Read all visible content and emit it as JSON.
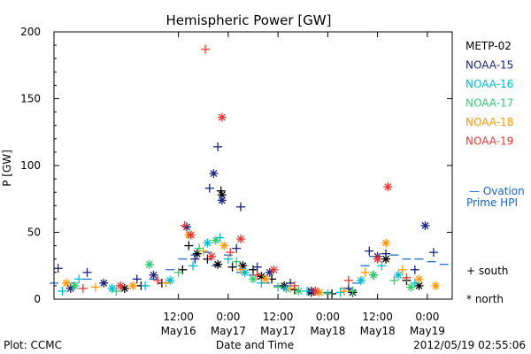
{
  "chart_data": {
    "type": "scatter",
    "title": "Hemispheric Power [GW]",
    "ylabel": "P [GW]",
    "xlabel": "Date and Time",
    "x_start": "2012-05-15T06:00",
    "x_end": "2012-05-19T06:00",
    "ylim": [
      0,
      200
    ],
    "y_ticks": [
      0,
      50,
      100,
      150,
      200
    ],
    "x_ticks": [
      {
        "time": "2012-05-16T12:00",
        "label": "12:00",
        "sublabel": "May16"
      },
      {
        "time": "2012-05-17T00:00",
        "label": "0:00",
        "sublabel": "May17"
      },
      {
        "time": "2012-05-17T12:00",
        "label": "12:00",
        "sublabel": "May17"
      },
      {
        "time": "2012-05-18T00:00",
        "label": "0:00",
        "sublabel": "May18"
      },
      {
        "time": "2012-05-18T12:00",
        "label": "12:00",
        "sublabel": "May18"
      },
      {
        "time": "2012-05-19T00:00",
        "label": "0:00",
        "sublabel": "May19"
      }
    ],
    "marker_legend": [
      {
        "marker": "plus",
        "label": "+ south"
      },
      {
        "marker": "star",
        "label": "* north"
      }
    ],
    "model_legend": {
      "label_line1": "— Ovation",
      "label_line2": "Prime HPI",
      "color": "#1565c0"
    },
    "series": [
      {
        "name": "METP-02",
        "color": "#000000",
        "points": [
          [
            "2012-05-15T23:00",
            8,
            "star"
          ],
          [
            "2012-05-16T03:00",
            10,
            "plus"
          ],
          [
            "2012-05-16T08:00",
            12,
            "plus"
          ],
          [
            "2012-05-16T13:00",
            22,
            "plus"
          ],
          [
            "2012-05-16T14:30",
            40,
            "plus"
          ],
          [
            "2012-05-16T16:30",
            34,
            "star"
          ],
          [
            "2012-05-16T19:00",
            30,
            "plus"
          ],
          [
            "2012-05-16T21:30",
            26,
            "star"
          ],
          [
            "2012-05-16T22:15",
            81,
            "plus"
          ],
          [
            "2012-05-16T22:30",
            78,
            "star"
          ],
          [
            "2012-05-17T01:00",
            24,
            "plus"
          ],
          [
            "2012-05-17T03:30",
            25,
            "star"
          ],
          [
            "2012-05-17T06:00",
            22,
            "plus"
          ],
          [
            "2012-05-17T08:00",
            17,
            "star"
          ],
          [
            "2012-05-17T10:30",
            15,
            "plus"
          ],
          [
            "2012-05-17T13:30",
            10,
            "star"
          ],
          [
            "2012-05-17T16:00",
            7,
            "plus"
          ],
          [
            "2012-05-17T20:00",
            5,
            "star"
          ],
          [
            "2012-05-18T01:00",
            4,
            "plus"
          ],
          [
            "2012-05-18T06:00",
            5,
            "star"
          ],
          [
            "2012-05-18T11:00",
            18,
            "plus"
          ],
          [
            "2012-05-18T14:00",
            30,
            "star"
          ],
          [
            "2012-05-18T19:00",
            14,
            "plus"
          ],
          [
            "2012-05-18T22:00",
            10,
            "star"
          ]
        ]
      },
      {
        "name": "NOAA-15",
        "color": "#1a237e",
        "points": [
          [
            "2012-05-15T07:00",
            23,
            "plus"
          ],
          [
            "2012-05-15T10:00",
            8,
            "star"
          ],
          [
            "2012-05-15T14:00",
            20,
            "plus"
          ],
          [
            "2012-05-15T18:00",
            12,
            "star"
          ],
          [
            "2012-05-16T02:00",
            15,
            "plus"
          ],
          [
            "2012-05-16T06:00",
            18,
            "star"
          ],
          [
            "2012-05-16T14:00",
            54,
            "star"
          ],
          [
            "2012-05-16T16:00",
            30,
            "plus"
          ],
          [
            "2012-05-16T19:30",
            83,
            "plus"
          ],
          [
            "2012-05-16T20:30",
            94,
            "star"
          ],
          [
            "2012-05-16T21:30",
            114,
            "plus"
          ],
          [
            "2012-05-16T22:30",
            74,
            "star"
          ],
          [
            "2012-05-17T02:00",
            38,
            "plus"
          ],
          [
            "2012-05-17T03:00",
            69,
            "plus"
          ],
          [
            "2012-05-17T07:00",
            24,
            "plus"
          ],
          [
            "2012-05-17T10:00",
            20,
            "star"
          ],
          [
            "2012-05-17T15:00",
            12,
            "plus"
          ],
          [
            "2012-05-17T20:00",
            6,
            "star"
          ],
          [
            "2012-05-18T05:00",
            8,
            "plus"
          ],
          [
            "2012-05-18T10:00",
            36,
            "plus"
          ],
          [
            "2012-05-18T12:00",
            32,
            "star"
          ],
          [
            "2012-05-18T14:00",
            34,
            "plus"
          ],
          [
            "2012-05-18T21:00",
            22,
            "plus"
          ],
          [
            "2012-05-18T23:30",
            55,
            "star"
          ],
          [
            "2012-05-19T01:30",
            35,
            "plus"
          ]
        ]
      },
      {
        "name": "NOAA-16",
        "color": "#00bcd4",
        "points": [
          [
            "2012-05-15T08:00",
            6,
            "plus"
          ],
          [
            "2012-05-15T12:00",
            15,
            "plus"
          ],
          [
            "2012-05-15T20:00",
            8,
            "star"
          ],
          [
            "2012-05-16T04:00",
            10,
            "plus"
          ],
          [
            "2012-05-16T10:00",
            14,
            "star"
          ],
          [
            "2012-05-16T15:30",
            25,
            "plus"
          ],
          [
            "2012-05-16T19:00",
            42,
            "star"
          ],
          [
            "2012-05-16T22:00",
            46,
            "plus"
          ],
          [
            "2012-05-17T00:00",
            30,
            "plus"
          ],
          [
            "2012-05-17T04:00",
            20,
            "star"
          ],
          [
            "2012-05-17T08:00",
            12,
            "plus"
          ],
          [
            "2012-05-17T14:00",
            8,
            "star"
          ],
          [
            "2012-05-17T19:00",
            6,
            "plus"
          ],
          [
            "2012-05-18T03:00",
            5,
            "plus"
          ],
          [
            "2012-05-18T08:00",
            14,
            "star"
          ],
          [
            "2012-05-18T13:00",
            25,
            "plus"
          ],
          [
            "2012-05-18T17:00",
            18,
            "star"
          ],
          [
            "2012-05-18T21:00",
            12,
            "plus"
          ]
        ]
      },
      {
        "name": "NOAA-17",
        "color": "#2ecc71",
        "points": [
          [
            "2012-05-15T11:00",
            10,
            "star"
          ],
          [
            "2012-05-15T21:00",
            6,
            "plus"
          ],
          [
            "2012-05-16T05:00",
            26,
            "star"
          ],
          [
            "2012-05-16T12:00",
            20,
            "plus"
          ],
          [
            "2012-05-16T17:00",
            38,
            "plus"
          ],
          [
            "2012-05-16T21:00",
            44,
            "star"
          ],
          [
            "2012-05-17T02:00",
            28,
            "plus"
          ],
          [
            "2012-05-17T06:00",
            15,
            "star"
          ],
          [
            "2012-05-17T12:00",
            9,
            "plus"
          ],
          [
            "2012-05-17T17:00",
            6,
            "star"
          ],
          [
            "2012-05-18T00:00",
            4,
            "plus"
          ],
          [
            "2012-05-18T06:00",
            6,
            "plus"
          ],
          [
            "2012-05-18T11:00",
            18,
            "star"
          ],
          [
            "2012-05-18T16:00",
            14,
            "plus"
          ],
          [
            "2012-05-18T20:00",
            9,
            "star"
          ]
        ]
      },
      {
        "name": "NOAA-18",
        "color": "#ff9800",
        "points": [
          [
            "2012-05-15T09:00",
            12,
            "star"
          ],
          [
            "2012-05-15T16:00",
            9,
            "plus"
          ],
          [
            "2012-05-16T01:00",
            10,
            "star"
          ],
          [
            "2012-05-16T09:00",
            12,
            "plus"
          ],
          [
            "2012-05-16T14:30",
            48,
            "star"
          ],
          [
            "2012-05-16T18:00",
            36,
            "plus"
          ],
          [
            "2012-05-16T23:00",
            40,
            "star"
          ],
          [
            "2012-05-17T03:00",
            22,
            "plus"
          ],
          [
            "2012-05-17T09:00",
            15,
            "star"
          ],
          [
            "2012-05-17T15:00",
            8,
            "plus"
          ],
          [
            "2012-05-17T22:00",
            5,
            "star"
          ],
          [
            "2012-05-18T04:00",
            6,
            "plus"
          ],
          [
            "2012-05-18T09:00",
            20,
            "plus"
          ],
          [
            "2012-05-18T14:00",
            42,
            "star"
          ],
          [
            "2012-05-18T18:00",
            22,
            "plus"
          ],
          [
            "2012-05-18T22:00",
            15,
            "star"
          ],
          [
            "2012-05-19T02:00",
            10,
            "star"
          ]
        ]
      },
      {
        "name": "NOAA-19",
        "color": "#e53935",
        "points": [
          [
            "2012-05-15T13:00",
            8,
            "plus"
          ],
          [
            "2012-05-15T22:00",
            10,
            "star"
          ],
          [
            "2012-05-16T07:00",
            14,
            "plus"
          ],
          [
            "2012-05-16T13:30",
            55,
            "plus"
          ],
          [
            "2012-05-16T15:00",
            48,
            "star"
          ],
          [
            "2012-05-16T18:30",
            187,
            "plus"
          ],
          [
            "2012-05-16T20:00",
            32,
            "star"
          ],
          [
            "2012-05-16T22:30",
            136,
            "star"
          ],
          [
            "2012-05-17T00:30",
            35,
            "plus"
          ],
          [
            "2012-05-17T03:00",
            45,
            "star"
          ],
          [
            "2012-05-17T07:00",
            18,
            "plus"
          ],
          [
            "2012-05-17T11:00",
            22,
            "star"
          ],
          [
            "2012-05-17T16:00",
            10,
            "plus"
          ],
          [
            "2012-05-17T21:00",
            6,
            "star"
          ],
          [
            "2012-05-18T05:00",
            14,
            "plus"
          ],
          [
            "2012-05-18T12:00",
            30,
            "star"
          ],
          [
            "2012-05-18T14:30",
            84,
            "star"
          ],
          [
            "2012-05-18T19:00",
            16,
            "plus"
          ]
        ]
      }
    ],
    "model_points": [
      [
        "2012-05-15T06:00",
        12
      ],
      [
        "2012-05-15T10:00",
        12
      ],
      [
        "2012-05-15T14:00",
        15
      ],
      [
        "2012-05-15T18:00",
        12
      ],
      [
        "2012-05-15T22:00",
        10
      ],
      [
        "2012-05-16T02:00",
        10
      ],
      [
        "2012-05-16T06:00",
        15
      ],
      [
        "2012-05-16T10:00",
        22
      ],
      [
        "2012-05-16T13:00",
        30
      ],
      [
        "2012-05-16T16:00",
        33
      ],
      [
        "2012-05-16T19:00",
        35
      ],
      [
        "2012-05-16T21:00",
        25
      ],
      [
        "2012-05-17T00:00",
        33
      ],
      [
        "2012-05-17T03:00",
        20
      ],
      [
        "2012-05-17T06:00",
        18
      ],
      [
        "2012-05-17T09:00",
        12
      ],
      [
        "2012-05-17T12:00",
        10
      ],
      [
        "2012-05-17T16:00",
        7
      ],
      [
        "2012-05-17T20:00",
        5
      ],
      [
        "2012-05-18T00:00",
        5
      ],
      [
        "2012-05-18T04:00",
        8
      ],
      [
        "2012-05-18T07:00",
        12
      ],
      [
        "2012-05-18T09:00",
        25
      ],
      [
        "2012-05-18T11:00",
        32
      ],
      [
        "2012-05-18T13:00",
        30
      ],
      [
        "2012-05-18T16:00",
        33
      ],
      [
        "2012-05-18T19:00",
        30
      ],
      [
        "2012-05-18T22:00",
        30
      ],
      [
        "2012-05-19T01:00",
        28
      ],
      [
        "2012-05-19T04:00",
        26
      ]
    ]
  },
  "footer": {
    "left": "Plot: CCMC",
    "right": "2012/05/19 02:55:06"
  }
}
